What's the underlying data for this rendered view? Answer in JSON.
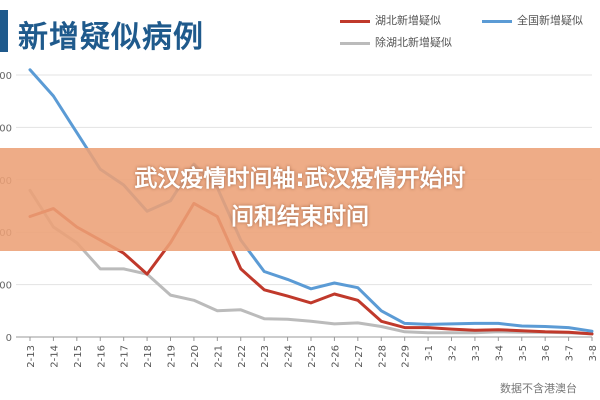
{
  "page": {
    "banner_line1": "武汉疫情时间轴:武汉疫情开始时",
    "banner_line2": "间和结束时间",
    "source_note": "数据不含港澳台"
  },
  "chart_data": {
    "type": "line",
    "title": "新增疑似病例",
    "categories": [
      "2-13",
      "2-14",
      "2-15",
      "2-16",
      "2-17",
      "2-18",
      "2-19",
      "2-20",
      "2-21",
      "2-22",
      "2-23",
      "2-24",
      "2-25",
      "2-26",
      "2-27",
      "2-28",
      "2-29",
      "3-1",
      "3-2",
      "3-3",
      "3-4",
      "3-5",
      "3-6",
      "3-7",
      "3-8"
    ],
    "ylim": [
      0,
      5000
    ],
    "y_ticks": [
      0,
      1000,
      2000,
      3000,
      4000,
      5000
    ],
    "y_tick_labels": [
      "0",
      "00",
      "00",
      "00",
      "00",
      "00"
    ],
    "grid": true,
    "legend_position": "top-right",
    "series": [
      {
        "name": "湖北新增疑似",
        "color": "#c0392b",
        "values": [
          2300,
          2450,
          2100,
          1850,
          1600,
          1200,
          1800,
          2550,
          2300,
          1300,
          900,
          780,
          650,
          820,
          700,
          300,
          180,
          180,
          150,
          130,
          140,
          120,
          100,
          90,
          60
        ]
      },
      {
        "name": "全国新增疑似",
        "color": "#5b9bd5",
        "values": [
          5100,
          4600,
          3900,
          3200,
          2900,
          2400,
          2600,
          3300,
          2850,
          1850,
          1250,
          1100,
          920,
          1030,
          940,
          500,
          260,
          240,
          250,
          260,
          260,
          210,
          200,
          180,
          110
        ]
      },
      {
        "name": "除湖北新增疑似",
        "color": "#bbbbbb",
        "values": [
          2800,
          2100,
          1800,
          1300,
          1300,
          1200,
          800,
          700,
          500,
          520,
          350,
          340,
          300,
          250,
          270,
          200,
          100,
          80,
          80,
          80,
          100,
          90,
          90,
          80,
          60
        ]
      }
    ]
  }
}
